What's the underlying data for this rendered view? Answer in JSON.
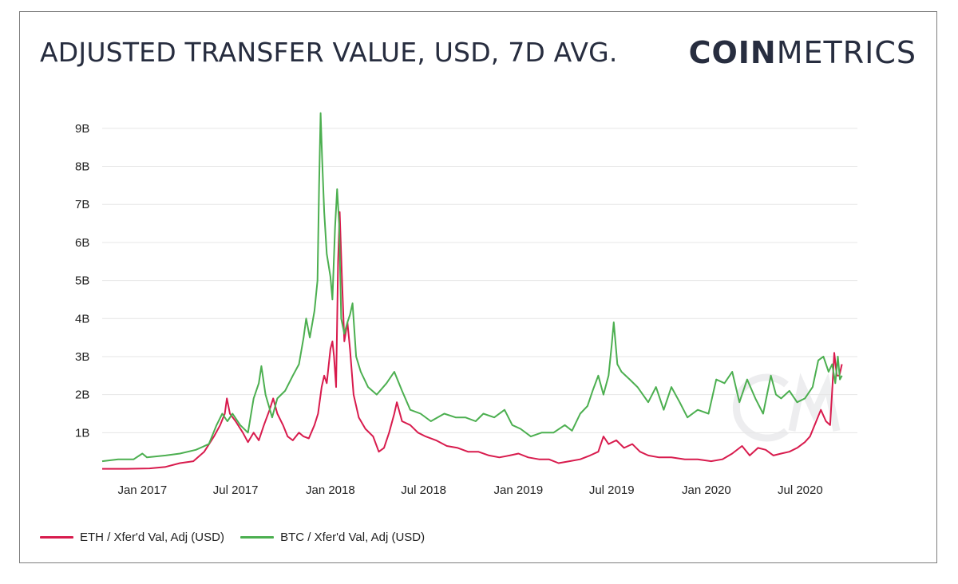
{
  "title": "ADJUSTED TRANSFER VALUE, USD, 7D AVG.",
  "brand": {
    "bold": "COIN",
    "light": "METRICS"
  },
  "chart_data": {
    "type": "line",
    "title": "ADJUSTED TRANSFER VALUE, USD, 7D AVG.",
    "xlabel": "",
    "ylabel": "",
    "ylim": [
      0,
      9.5
    ],
    "y_unit": "B (USD)",
    "yticks": [
      "1B",
      "2B",
      "3B",
      "4B",
      "5B",
      "6B",
      "7B",
      "8B",
      "9B"
    ],
    "ytick_values": [
      1,
      2,
      3,
      4,
      5,
      6,
      7,
      8,
      9
    ],
    "xticks": [
      "Jan 2017",
      "Jul 2017",
      "Jan 2018",
      "Jul 2018",
      "Jan 2019",
      "Jul 2019",
      "Jan 2020",
      "Jul 2020"
    ],
    "xtick_dates": [
      "2017-01-01",
      "2017-07-01",
      "2018-01-01",
      "2018-07-01",
      "2019-01-01",
      "2019-07-01",
      "2020-01-01",
      "2020-07-01"
    ],
    "xlim": [
      "2016-10-15",
      "2020-10-20"
    ],
    "grid": true,
    "legend_position": "bottom-left",
    "series": [
      {
        "name": "ETH / Xfer'd Val, Adj (USD)",
        "color": "#d81b4d",
        "points": [
          [
            "2016-10-15",
            0.05
          ],
          [
            "2016-12-01",
            0.05
          ],
          [
            "2017-01-15",
            0.06
          ],
          [
            "2017-02-15",
            0.1
          ],
          [
            "2017-03-15",
            0.2
          ],
          [
            "2017-04-10",
            0.25
          ],
          [
            "2017-05-01",
            0.5
          ],
          [
            "2017-05-20",
            0.9
          ],
          [
            "2017-06-01",
            1.2
          ],
          [
            "2017-06-10",
            1.5
          ],
          [
            "2017-06-14",
            1.9
          ],
          [
            "2017-06-20",
            1.5
          ],
          [
            "2017-07-01",
            1.3
          ],
          [
            "2017-07-15",
            1.0
          ],
          [
            "2017-07-25",
            0.75
          ],
          [
            "2017-08-05",
            1.0
          ],
          [
            "2017-08-15",
            0.8
          ],
          [
            "2017-08-25",
            1.2
          ],
          [
            "2017-09-05",
            1.6
          ],
          [
            "2017-09-12",
            1.9
          ],
          [
            "2017-09-20",
            1.5
          ],
          [
            "2017-10-01",
            1.2
          ],
          [
            "2017-10-10",
            0.9
          ],
          [
            "2017-10-20",
            0.8
          ],
          [
            "2017-11-01",
            1.0
          ],
          [
            "2017-11-10",
            0.9
          ],
          [
            "2017-11-20",
            0.85
          ],
          [
            "2017-12-01",
            1.2
          ],
          [
            "2017-12-08",
            1.5
          ],
          [
            "2017-12-15",
            2.2
          ],
          [
            "2017-12-20",
            2.5
          ],
          [
            "2017-12-25",
            2.3
          ],
          [
            "2018-01-01",
            3.2
          ],
          [
            "2018-01-05",
            3.4
          ],
          [
            "2018-01-08",
            3.0
          ],
          [
            "2018-01-12",
            2.2
          ],
          [
            "2018-01-16",
            5.5
          ],
          [
            "2018-01-19",
            6.8
          ],
          [
            "2018-01-23",
            5.2
          ],
          [
            "2018-01-28",
            3.4
          ],
          [
            "2018-02-03",
            3.9
          ],
          [
            "2018-02-08",
            3.2
          ],
          [
            "2018-02-15",
            2.0
          ],
          [
            "2018-02-25",
            1.4
          ],
          [
            "2018-03-10",
            1.1
          ],
          [
            "2018-03-25",
            0.9
          ],
          [
            "2018-04-05",
            0.5
          ],
          [
            "2018-04-15",
            0.6
          ],
          [
            "2018-04-25",
            1.0
          ],
          [
            "2018-05-05",
            1.5
          ],
          [
            "2018-05-10",
            1.8
          ],
          [
            "2018-05-20",
            1.3
          ],
          [
            "2018-06-05",
            1.2
          ],
          [
            "2018-06-20",
            1.0
          ],
          [
            "2018-07-05",
            0.9
          ],
          [
            "2018-07-25",
            0.8
          ],
          [
            "2018-08-15",
            0.65
          ],
          [
            "2018-09-05",
            0.6
          ],
          [
            "2018-09-25",
            0.5
          ],
          [
            "2018-10-15",
            0.5
          ],
          [
            "2018-11-05",
            0.4
          ],
          [
            "2018-11-25",
            0.35
          ],
          [
            "2018-12-15",
            0.4
          ],
          [
            "2019-01-01",
            0.45
          ],
          [
            "2019-01-20",
            0.35
          ],
          [
            "2019-02-10",
            0.3
          ],
          [
            "2019-03-01",
            0.3
          ],
          [
            "2019-03-20",
            0.2
          ],
          [
            "2019-04-10",
            0.25
          ],
          [
            "2019-05-01",
            0.3
          ],
          [
            "2019-05-20",
            0.4
          ],
          [
            "2019-06-05",
            0.5
          ],
          [
            "2019-06-15",
            0.9
          ],
          [
            "2019-06-25",
            0.7
          ],
          [
            "2019-07-10",
            0.8
          ],
          [
            "2019-07-25",
            0.6
          ],
          [
            "2019-08-10",
            0.7
          ],
          [
            "2019-08-25",
            0.5
          ],
          [
            "2019-09-10",
            0.4
          ],
          [
            "2019-10-01",
            0.35
          ],
          [
            "2019-10-25",
            0.35
          ],
          [
            "2019-11-20",
            0.3
          ],
          [
            "2019-12-15",
            0.3
          ],
          [
            "2020-01-10",
            0.25
          ],
          [
            "2020-02-01",
            0.3
          ],
          [
            "2020-02-20",
            0.45
          ],
          [
            "2020-03-10",
            0.65
          ],
          [
            "2020-03-25",
            0.4
          ],
          [
            "2020-04-10",
            0.6
          ],
          [
            "2020-04-25",
            0.55
          ],
          [
            "2020-05-10",
            0.4
          ],
          [
            "2020-05-25",
            0.45
          ],
          [
            "2020-06-10",
            0.5
          ],
          [
            "2020-06-25",
            0.6
          ],
          [
            "2020-07-10",
            0.75
          ],
          [
            "2020-07-20",
            0.9
          ],
          [
            "2020-08-01",
            1.3
          ],
          [
            "2020-08-10",
            1.6
          ],
          [
            "2020-08-20",
            1.3
          ],
          [
            "2020-08-28",
            1.2
          ],
          [
            "2020-09-01",
            2.1
          ],
          [
            "2020-09-05",
            3.1
          ],
          [
            "2020-09-10",
            2.5
          ],
          [
            "2020-09-15",
            2.5
          ],
          [
            "2020-09-20",
            2.8
          ]
        ]
      },
      {
        "name": "BTC / Xfer'd Val, Adj (USD)",
        "color": "#4caf50",
        "points": [
          [
            "2016-10-15",
            0.25
          ],
          [
            "2016-11-15",
            0.3
          ],
          [
            "2016-12-15",
            0.3
          ],
          [
            "2017-01-01",
            0.45
          ],
          [
            "2017-01-10",
            0.35
          ],
          [
            "2017-02-15",
            0.4
          ],
          [
            "2017-03-15",
            0.45
          ],
          [
            "2017-04-15",
            0.55
          ],
          [
            "2017-05-10",
            0.7
          ],
          [
            "2017-05-25",
            1.2
          ],
          [
            "2017-06-05",
            1.5
          ],
          [
            "2017-06-15",
            1.3
          ],
          [
            "2017-06-25",
            1.5
          ],
          [
            "2017-07-10",
            1.2
          ],
          [
            "2017-07-25",
            1.0
          ],
          [
            "2017-08-05",
            1.9
          ],
          [
            "2017-08-15",
            2.3
          ],
          [
            "2017-08-20",
            2.75
          ],
          [
            "2017-08-28",
            2.0
          ],
          [
            "2017-09-10",
            1.4
          ],
          [
            "2017-09-20",
            1.9
          ],
          [
            "2017-10-05",
            2.1
          ],
          [
            "2017-10-20",
            2.5
          ],
          [
            "2017-11-01",
            2.8
          ],
          [
            "2017-11-10",
            3.5
          ],
          [
            "2017-11-15",
            4.0
          ],
          [
            "2017-11-22",
            3.5
          ],
          [
            "2017-12-01",
            4.2
          ],
          [
            "2017-12-07",
            5.0
          ],
          [
            "2017-12-10",
            7.5
          ],
          [
            "2017-12-13",
            9.4
          ],
          [
            "2017-12-16",
            8.2
          ],
          [
            "2017-12-20",
            6.8
          ],
          [
            "2017-12-25",
            5.7
          ],
          [
            "2018-01-01",
            5.1
          ],
          [
            "2018-01-05",
            4.5
          ],
          [
            "2018-01-10",
            6.4
          ],
          [
            "2018-01-14",
            7.4
          ],
          [
            "2018-01-18",
            6.5
          ],
          [
            "2018-01-22",
            4.0
          ],
          [
            "2018-01-28",
            3.6
          ],
          [
            "2018-02-03",
            3.9
          ],
          [
            "2018-02-08",
            4.1
          ],
          [
            "2018-02-13",
            4.4
          ],
          [
            "2018-02-20",
            3.0
          ],
          [
            "2018-03-01",
            2.6
          ],
          [
            "2018-03-15",
            2.2
          ],
          [
            "2018-04-01",
            2.0
          ],
          [
            "2018-04-20",
            2.3
          ],
          [
            "2018-05-05",
            2.6
          ],
          [
            "2018-05-20",
            2.1
          ],
          [
            "2018-06-05",
            1.6
          ],
          [
            "2018-06-25",
            1.5
          ],
          [
            "2018-07-15",
            1.3
          ],
          [
            "2018-08-10",
            1.5
          ],
          [
            "2018-09-01",
            1.4
          ],
          [
            "2018-09-20",
            1.4
          ],
          [
            "2018-10-10",
            1.3
          ],
          [
            "2018-10-25",
            1.5
          ],
          [
            "2018-11-15",
            1.4
          ],
          [
            "2018-12-05",
            1.6
          ],
          [
            "2018-12-20",
            1.2
          ],
          [
            "2019-01-05",
            1.1
          ],
          [
            "2019-01-25",
            0.9
          ],
          [
            "2019-02-15",
            1.0
          ],
          [
            "2019-03-10",
            1.0
          ],
          [
            "2019-04-01",
            1.2
          ],
          [
            "2019-04-15",
            1.05
          ],
          [
            "2019-05-01",
            1.5
          ],
          [
            "2019-05-15",
            1.7
          ],
          [
            "2019-05-25",
            2.1
          ],
          [
            "2019-06-05",
            2.5
          ],
          [
            "2019-06-15",
            2.0
          ],
          [
            "2019-06-25",
            2.5
          ],
          [
            "2019-07-01",
            3.3
          ],
          [
            "2019-07-05",
            3.9
          ],
          [
            "2019-07-12",
            2.8
          ],
          [
            "2019-07-20",
            2.6
          ],
          [
            "2019-08-05",
            2.4
          ],
          [
            "2019-08-20",
            2.2
          ],
          [
            "2019-09-10",
            1.8
          ],
          [
            "2019-09-25",
            2.2
          ],
          [
            "2019-10-10",
            1.6
          ],
          [
            "2019-10-25",
            2.2
          ],
          [
            "2019-11-10",
            1.8
          ],
          [
            "2019-11-25",
            1.4
          ],
          [
            "2019-12-15",
            1.6
          ],
          [
            "2020-01-05",
            1.5
          ],
          [
            "2020-01-20",
            2.4
          ],
          [
            "2020-02-05",
            2.3
          ],
          [
            "2020-02-20",
            2.6
          ],
          [
            "2020-03-05",
            1.8
          ],
          [
            "2020-03-20",
            2.4
          ],
          [
            "2020-04-05",
            1.9
          ],
          [
            "2020-04-20",
            1.5
          ],
          [
            "2020-05-05",
            2.5
          ],
          [
            "2020-05-15",
            2.0
          ],
          [
            "2020-05-25",
            1.9
          ],
          [
            "2020-06-10",
            2.1
          ],
          [
            "2020-06-25",
            1.8
          ],
          [
            "2020-07-10",
            1.9
          ],
          [
            "2020-07-25",
            2.2
          ],
          [
            "2020-08-05",
            2.9
          ],
          [
            "2020-08-15",
            3.0
          ],
          [
            "2020-08-25",
            2.6
          ],
          [
            "2020-09-01",
            2.8
          ],
          [
            "2020-09-07",
            2.3
          ],
          [
            "2020-09-12",
            3.0
          ],
          [
            "2020-09-16",
            2.4
          ],
          [
            "2020-09-20",
            2.5
          ]
        ]
      }
    ]
  }
}
